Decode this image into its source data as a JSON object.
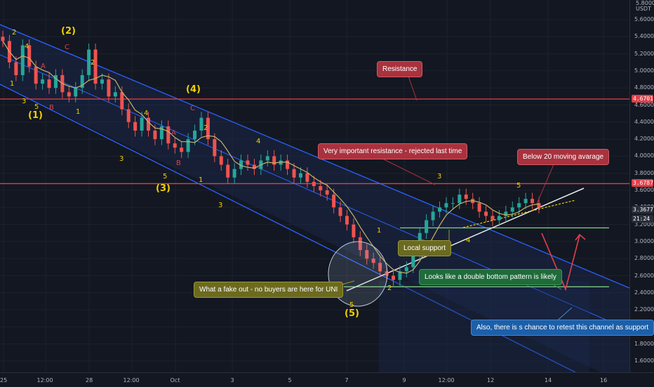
{
  "chart_data": {
    "type": "candlestick",
    "axis_unit": "USDT",
    "yaxis_unit_top": "5.8000",
    "ylim": [
      1.5,
      5.9
    ],
    "y_ticks": [
      "5.6000",
      "5.4000",
      "5.2000",
      "5.0000",
      "4.8000",
      "4.6000",
      "4.4000",
      "4.2000",
      "4.0000",
      "3.8000",
      "3.6000",
      "3.4000",
      "3.2000",
      "3.0000",
      "2.8000",
      "2.6000",
      "2.4000",
      "2.2000",
      "2.0000",
      "1.8000",
      "1.6000"
    ],
    "x_ticks": [
      "25",
      "12:00",
      "28",
      "12:00",
      "Oct",
      "3",
      "5",
      "7",
      "9",
      "12:00",
      "12",
      "14",
      "16"
    ],
    "price_tags": [
      {
        "value": "4.6701",
        "color": "#e0404a"
      },
      {
        "value": "3.6787",
        "color": "#e0404a"
      },
      {
        "value": "3.3677",
        "color": "#2a2e39"
      },
      {
        "value": "21:24",
        "color": "#2a2e39"
      }
    ],
    "horizontal_lines": [
      {
        "name": "resistance",
        "value": 4.6701,
        "color": "#e0404a"
      },
      {
        "name": "important-resistance",
        "value": 3.6787,
        "color": "#e0404a"
      },
      {
        "name": "local-support",
        "value": 3.16,
        "color": "#7ec87e"
      },
      {
        "name": "double-bottom-level",
        "value": 2.47,
        "color": "#7ec87e"
      }
    ],
    "close_prices": [
      5.35,
      5.1,
      4.95,
      5.3,
      5.05,
      4.85,
      4.9,
      4.8,
      4.95,
      4.75,
      4.7,
      4.8,
      4.95,
      5.25,
      4.85,
      4.9,
      4.7,
      4.75,
      4.55,
      4.4,
      4.3,
      4.45,
      4.3,
      4.2,
      4.35,
      4.15,
      4.1,
      4.05,
      4.2,
      4.3,
      4.45,
      4.2,
      4.0,
      3.9,
      3.75,
      3.85,
      3.95,
      3.9,
      3.85,
      3.95,
      4.0,
      3.9,
      3.95,
      3.85,
      3.75,
      3.8,
      3.7,
      3.65,
      3.6,
      3.55,
      3.4,
      3.3,
      3.2,
      3.05,
      2.9,
      2.8,
      2.75,
      2.65,
      2.6,
      2.55,
      2.65,
      2.7,
      2.85,
      3.1,
      3.25,
      3.35,
      3.4,
      3.45,
      3.45,
      3.55,
      3.5,
      3.45,
      3.35,
      3.3,
      3.25,
      3.3,
      3.35,
      3.4,
      3.45,
      3.5,
      3.45,
      3.4
    ],
    "wave_labels": [
      {
        "text": "2",
        "color": "#f0d000",
        "size": "small"
      },
      {
        "text": "4",
        "color": "#f0d000",
        "size": "small"
      },
      {
        "text": "A",
        "color": "#e0404a",
        "size": "small"
      },
      {
        "text": "C",
        "color": "#e0404a",
        "size": "small"
      },
      {
        "text": "(2)",
        "color": "#f0d000",
        "size": "big"
      },
      {
        "text": "2",
        "color": "#f0d000",
        "size": "small"
      },
      {
        "text": "1",
        "color": "#f0d000",
        "size": "small"
      },
      {
        "text": "3",
        "color": "#f0d000",
        "size": "small"
      },
      {
        "text": "5",
        "color": "#f0d000",
        "size": "small"
      },
      {
        "text": "B",
        "color": "#e0404a",
        "size": "small"
      },
      {
        "text": "1",
        "color": "#f0d000",
        "size": "small"
      },
      {
        "text": "(1)",
        "color": "#f0d000",
        "size": "big"
      },
      {
        "text": "(4)",
        "color": "#f0d000",
        "size": "big"
      },
      {
        "text": "C",
        "color": "#e0404a",
        "size": "small"
      },
      {
        "text": "4",
        "color": "#f0d000",
        "size": "small"
      },
      {
        "text": "A",
        "color": "#e0404a",
        "size": "small"
      },
      {
        "text": "2",
        "color": "#f0d000",
        "size": "small"
      },
      {
        "text": "3",
        "color": "#f0d000",
        "size": "small"
      },
      {
        "text": "B",
        "color": "#e0404a",
        "size": "small"
      },
      {
        "text": "5",
        "color": "#f0d000",
        "size": "small"
      },
      {
        "text": "1",
        "color": "#f0d000",
        "size": "small"
      },
      {
        "text": "(3)",
        "color": "#f0d000",
        "size": "big"
      },
      {
        "text": "3",
        "color": "#f0d000",
        "size": "small"
      },
      {
        "text": "4",
        "color": "#f0d000",
        "size": "small"
      },
      {
        "text": "1",
        "color": "#f0d000",
        "size": "small"
      },
      {
        "text": "2",
        "color": "#f0d000",
        "size": "small"
      },
      {
        "text": "5",
        "color": "#f0d000",
        "size": "small"
      },
      {
        "text": "(5)",
        "color": "#f0d000",
        "size": "big"
      },
      {
        "text": "3",
        "color": "#f0d000",
        "size": "small"
      },
      {
        "text": "4",
        "color": "#f0d000",
        "size": "small"
      },
      {
        "text": "5",
        "color": "#f0d000",
        "size": "small"
      }
    ],
    "annotations": [
      {
        "name": "resistance-note",
        "text": "Resistance",
        "style": "red"
      },
      {
        "name": "important-resistance-note",
        "text": "Very important resistance - rejected last time",
        "style": "red"
      },
      {
        "name": "below-ma-note",
        "text": "Below 20 moving avarage",
        "style": "red"
      },
      {
        "name": "local-support-note",
        "text": "Local support",
        "style": "olive"
      },
      {
        "name": "double-bottom-note",
        "text": "Looks like a double bottom pattern is likely",
        "style": "green"
      },
      {
        "name": "fake-out-note",
        "text": "What a fake out - no buyers are here for UNI",
        "style": "olive"
      },
      {
        "name": "retest-channel-note",
        "text": "Also, there is s chance to retest this channel as support",
        "style": "blue"
      }
    ],
    "colors": {
      "background": "#131722",
      "channel": "#2962ff",
      "candle_up": "#26a69a",
      "candle_down": "#ef5350",
      "moving_average": "#c8b46a",
      "projection": "#e0404a"
    }
  }
}
